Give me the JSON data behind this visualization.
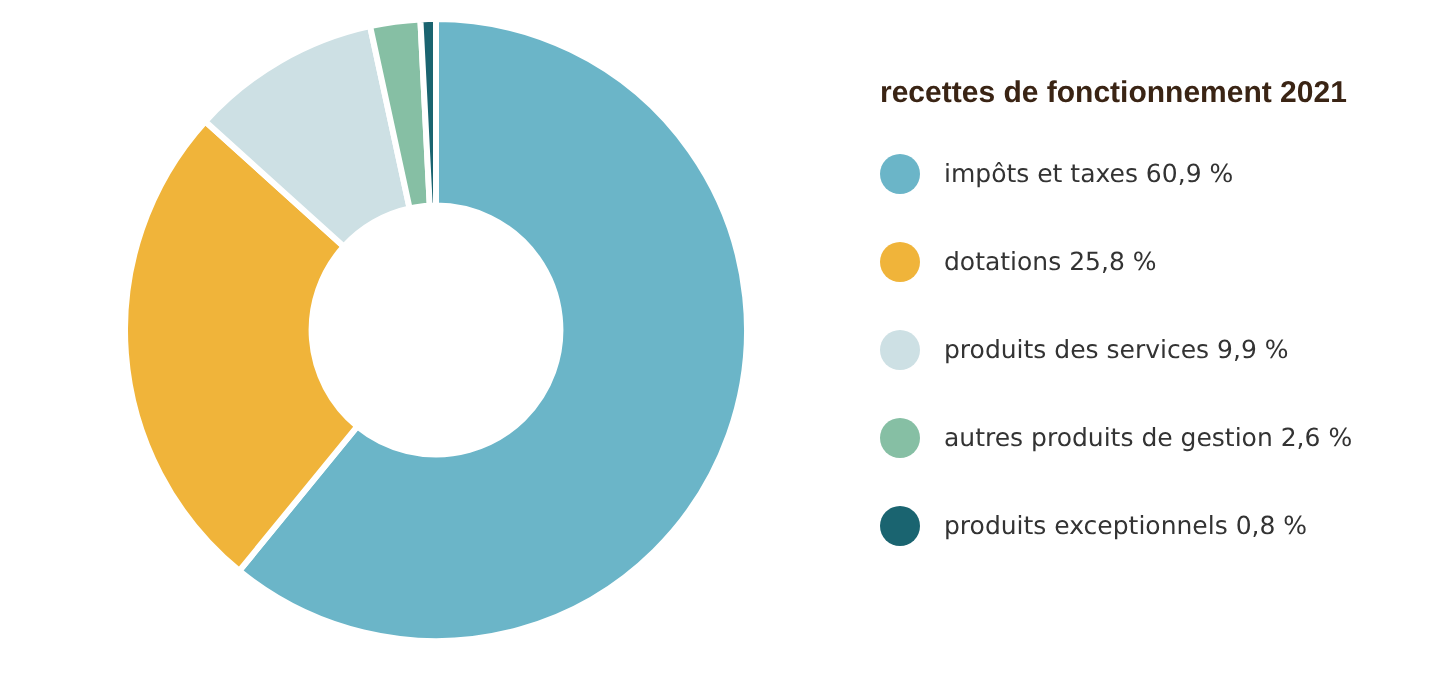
{
  "chart_data": {
    "type": "donut",
    "title": "recettes de fonctionnement 2021",
    "categories": [
      "impôts et taxes",
      "dotations",
      "produits des services",
      "autres produits de gestion",
      "produits exceptionnels"
    ],
    "values": [
      60.9,
      25.8,
      9.9,
      2.6,
      0.8
    ],
    "value_labels": [
      "60,9 %",
      "25,8 %",
      "9,9 %",
      "2,6 %",
      "0,8 %"
    ],
    "colors": [
      "#6bb5c8",
      "#f0b43a",
      "#cde0e4",
      "#86bfa4",
      "#1a6470"
    ],
    "legend": "right"
  }
}
